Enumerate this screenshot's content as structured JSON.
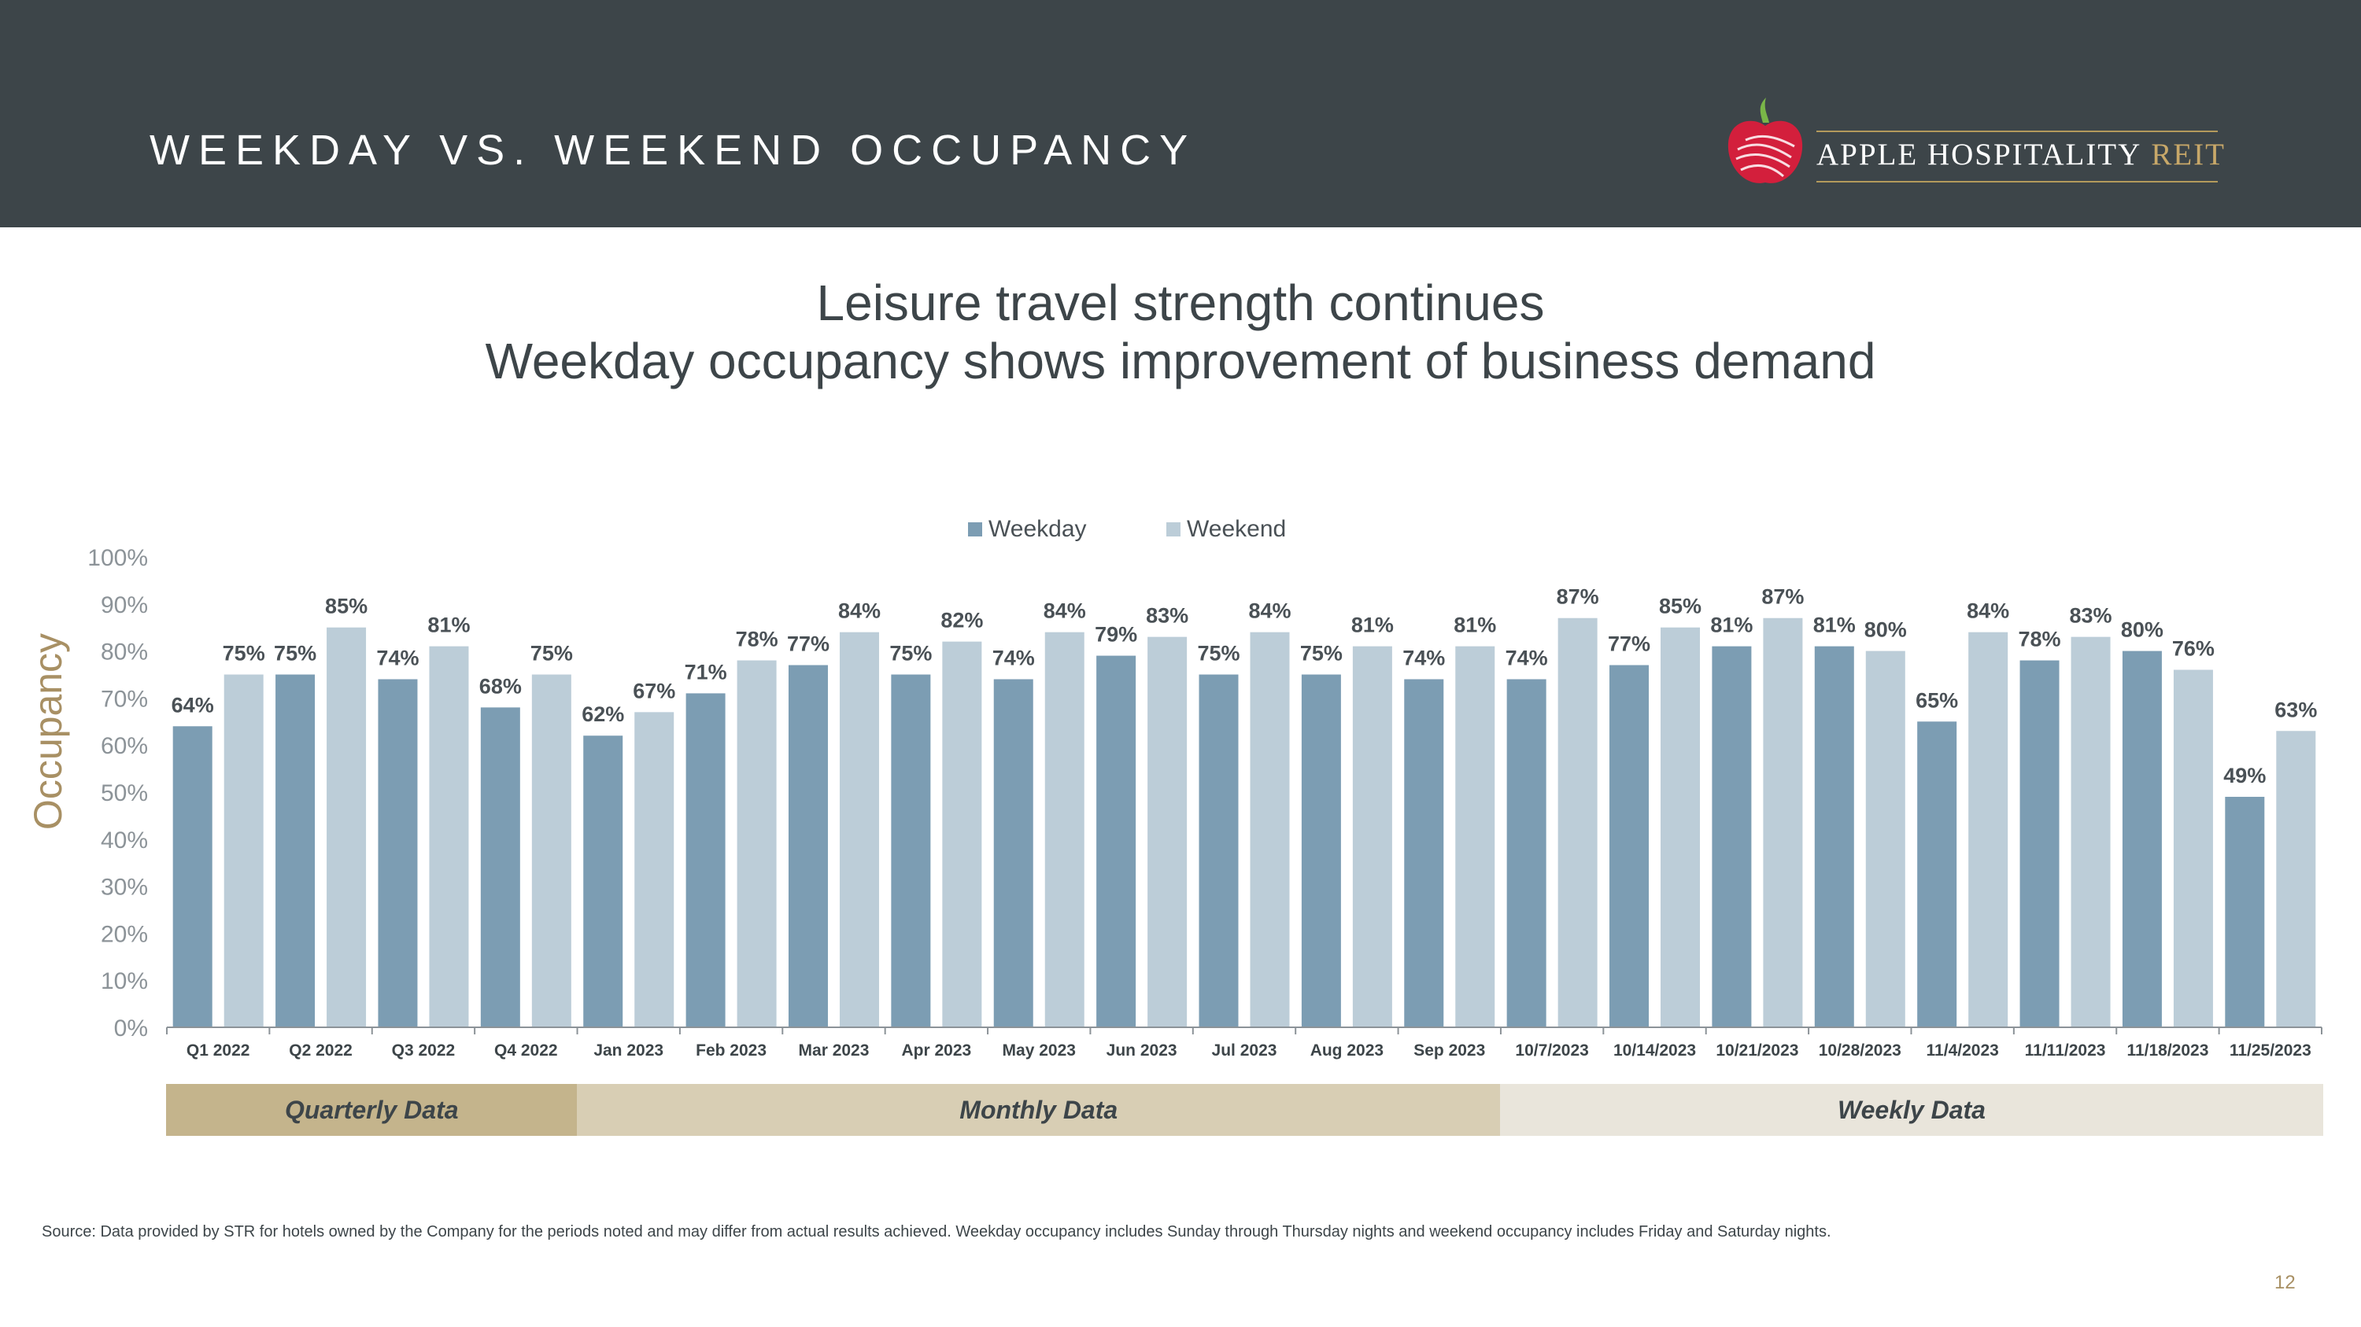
{
  "header": {
    "title": "WEEKDAY VS. WEEKEND OCCUPANCY",
    "logo_text": "APPLE HOSPITALITY",
    "logo_reit": "REIT"
  },
  "subtitle": {
    "line1": "Leisure travel strength continues",
    "line2": "Weekday occupancy shows improvement of business demand"
  },
  "chart_data": {
    "type": "bar",
    "title": "",
    "xlabel": "",
    "ylabel": "Occupancy",
    "ylim": [
      0,
      100
    ],
    "yticks": [
      "0%",
      "10%",
      "20%",
      "30%",
      "40%",
      "50%",
      "60%",
      "70%",
      "80%",
      "90%",
      "100%"
    ],
    "legend_position": "top-center",
    "categories": [
      "Q1 2022",
      "Q2 2022",
      "Q3 2022",
      "Q4 2022",
      "Jan 2023",
      "Feb 2023",
      "Mar 2023",
      "Apr 2023",
      "May 2023",
      "Jun 2023",
      "Jul 2023",
      "Aug 2023",
      "Sep 2023",
      "10/7/2023",
      "10/14/2023",
      "10/21/2023",
      "10/28/2023",
      "11/4/2023",
      "11/11/2023",
      "11/18/2023",
      "11/25/2023"
    ],
    "series": [
      {
        "name": "Weekday",
        "color": "#7c9db3",
        "values": [
          64,
          75,
          74,
          68,
          62,
          71,
          77,
          75,
          74,
          79,
          75,
          75,
          74,
          74,
          77,
          81,
          81,
          65,
          78,
          80,
          49
        ],
        "labels": [
          "64%",
          "75%",
          "74%",
          "68%",
          "62%",
          "71%",
          "77%",
          "75%",
          "74%",
          "79%",
          "75%",
          "75%",
          "74%",
          "74%",
          "77%",
          "81%",
          "81%",
          "65%",
          "78%",
          "80%",
          "49%"
        ]
      },
      {
        "name": "Weekend",
        "color": "#bccdd8",
        "values": [
          75,
          85,
          81,
          75,
          67,
          78,
          84,
          82,
          84,
          83,
          84,
          81,
          81,
          87,
          85,
          87,
          80,
          84,
          83,
          76,
          63
        ],
        "labels": [
          "75%",
          "85%",
          "81%",
          "75%",
          "67%",
          "78%",
          "84%",
          "82%",
          "84%",
          "83%",
          "84%",
          "81%",
          "81%",
          "87%",
          "85%",
          "87%",
          "80%",
          "84%",
          "83%",
          "76%",
          "63%"
        ]
      }
    ],
    "periods": [
      {
        "label": "Quarterly Data",
        "start": 0,
        "end": 3,
        "color": "#c4b48c"
      },
      {
        "label": "Monthly Data",
        "start": 4,
        "end": 12,
        "color": "#d8ceb4"
      },
      {
        "label": "Weekly Data",
        "start": 13,
        "end": 20,
        "color": "#e9e5db"
      }
    ]
  },
  "footer": {
    "source": "Source:  Data provided by STR for hotels owned by the Company for the periods noted and may differ from actual results achieved. Weekday occupancy includes Sunday through Thursday nights and weekend occupancy includes Friday and Saturday nights.",
    "page_number": "12"
  }
}
